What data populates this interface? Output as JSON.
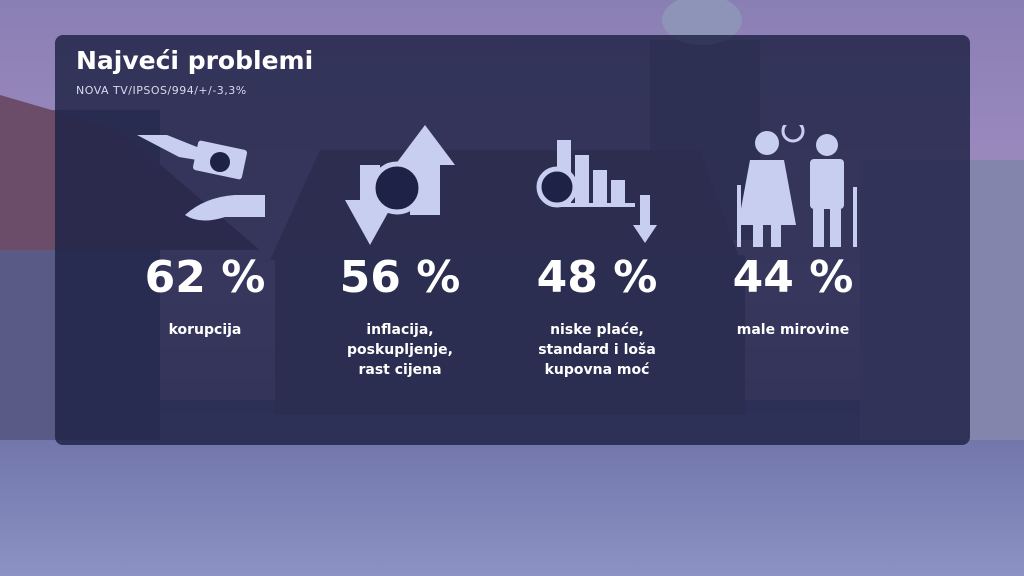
{
  "title": "Najveći problemi",
  "source": "NOVA TV/IPSOS/994/+/-3,3%",
  "items": [
    {
      "percent": "62 %",
      "label": "korupcija"
    },
    {
      "percent": "56 %",
      "label": "inflacija, poskupljenje, rast cijena"
    },
    {
      "percent": "48 %",
      "label": "niske plaće, standard i loša kupovna moć"
    },
    {
      "percent": "44 %",
      "label": "male mirovine"
    }
  ]
}
